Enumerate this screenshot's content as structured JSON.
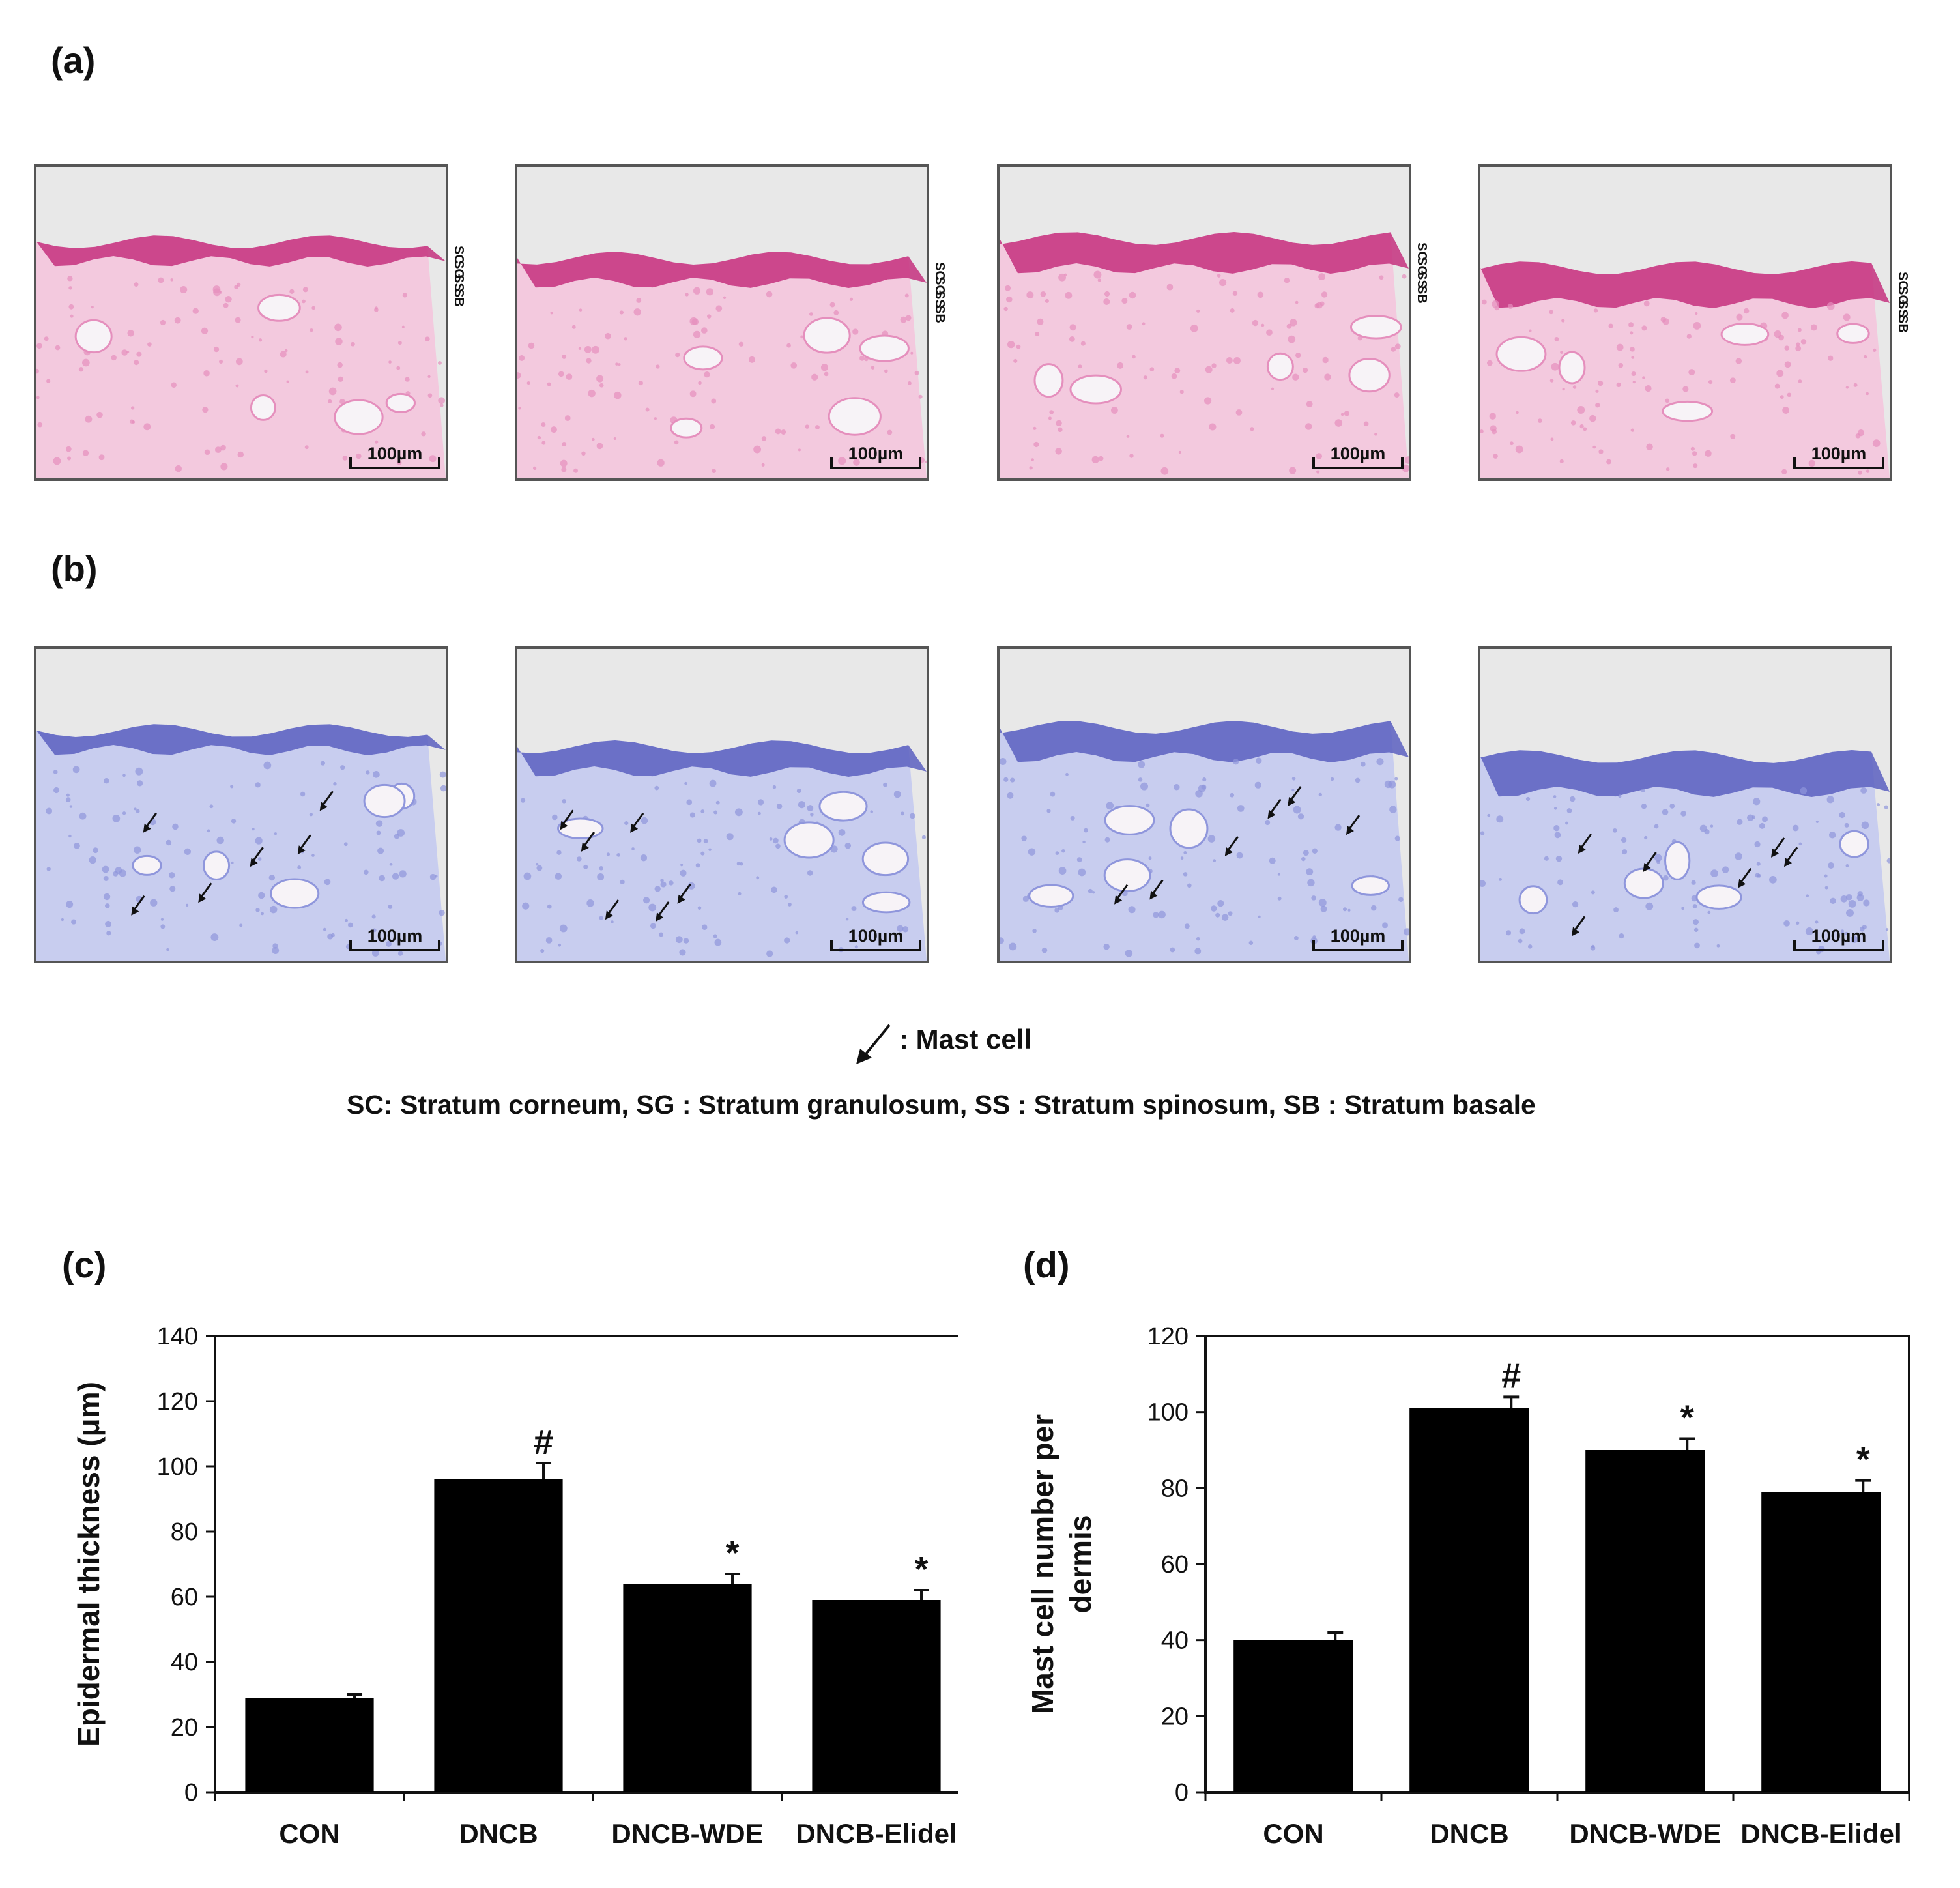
{
  "panels": {
    "a": "(a)",
    "b": "(b)",
    "c": "(c)",
    "d": "(d)"
  },
  "scale_bar": "100µm",
  "layer_labels": [
    "SC",
    "SG",
    "SS",
    "SB"
  ],
  "legend": {
    "mast_cell": ": Mast cell",
    "strata": "SC: Stratum corneum,  SG : Stratum granulosum,  SS : Stratum spinosum,  SB : Stratum basale"
  },
  "colors": {
    "he_stain": "#e05aa0",
    "toluidine": "#6a6fd0",
    "bar": "#000000"
  },
  "chart_data": [
    {
      "type": "bar",
      "categories": [
        "CON",
        "DNCB",
        "DNCB-WDE",
        "DNCB-Elidel"
      ],
      "values": [
        29,
        96,
        64,
        59
      ],
      "errors": [
        1,
        5,
        3,
        3
      ],
      "markers": [
        "",
        "#",
        "*",
        "*"
      ],
      "ylabel": "Epidermal thickness (μm)",
      "ylim": [
        0,
        140
      ],
      "yticks": [
        "0",
        "20",
        "40",
        "60",
        "80",
        "100",
        "120",
        "140"
      ],
      "yticks_values": [
        0,
        20,
        40,
        60,
        80,
        100,
        120,
        140
      ]
    },
    {
      "type": "bar",
      "categories": [
        "CON",
        "DNCB",
        "DNCB-WDE",
        "DNCB-Elidel"
      ],
      "values": [
        40,
        101,
        90,
        79
      ],
      "errors": [
        2,
        3,
        3,
        3
      ],
      "markers": [
        "",
        "#",
        "*",
        "*"
      ],
      "ylabel": "Mast cell number per dermis",
      "ylabel_lines": [
        "Mast cell number per",
        "dermis"
      ],
      "ylim": [
        0,
        120
      ],
      "yticks": [
        "0",
        "20",
        "40",
        "60",
        "80",
        "100",
        "120"
      ],
      "yticks_values": [
        0,
        20,
        40,
        60,
        80,
        100,
        120
      ]
    }
  ]
}
